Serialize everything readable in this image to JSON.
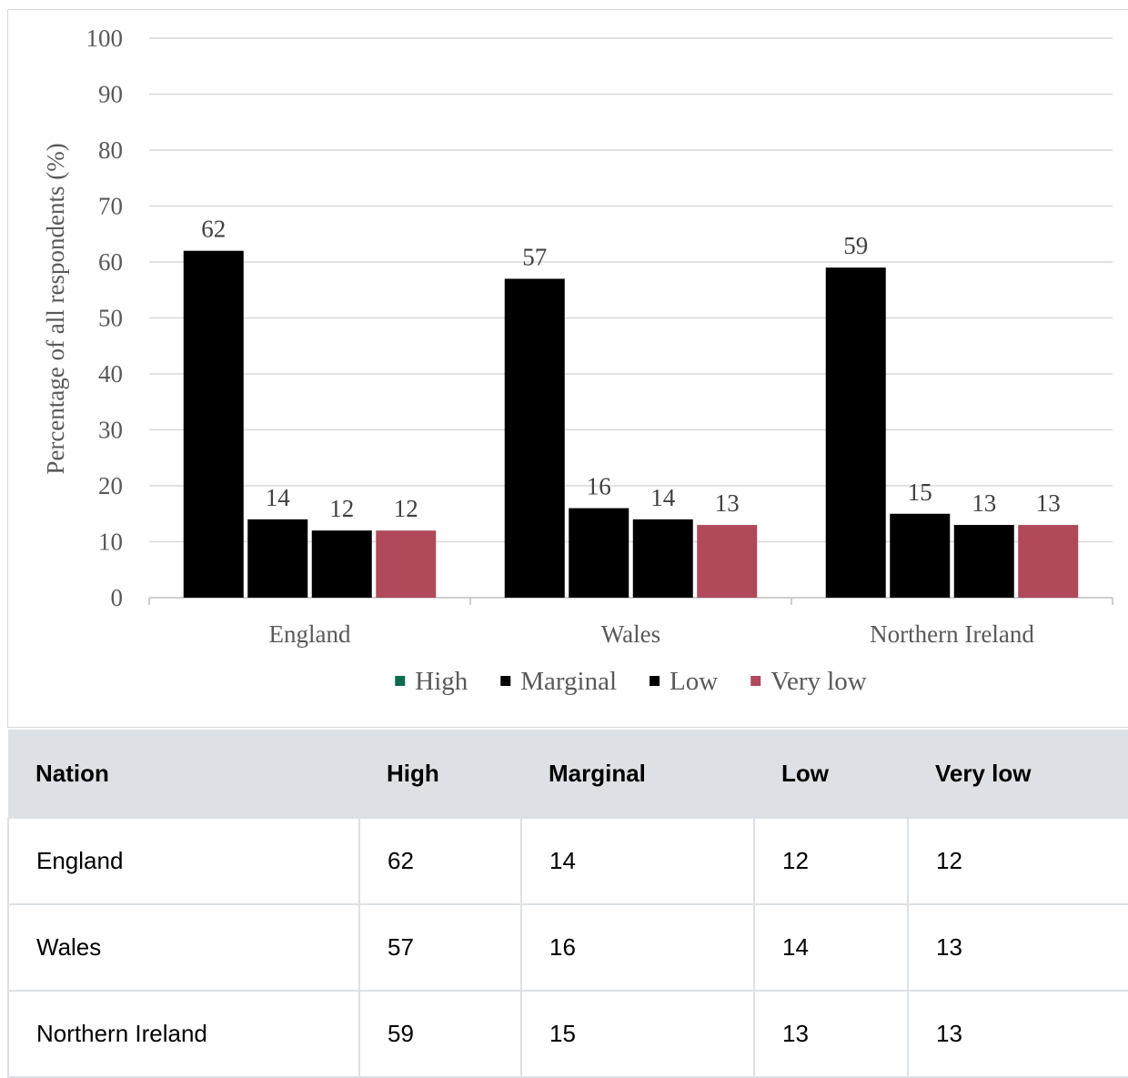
{
  "chart_data": {
    "type": "bar",
    "categories": [
      "England",
      "Wales",
      "Northern Ireland"
    ],
    "series": [
      {
        "name": "High",
        "values": [
          62,
          57,
          59
        ],
        "color": "#000000",
        "legend_color": "#0b6b4f"
      },
      {
        "name": "Marginal",
        "values": [
          14,
          16,
          15
        ],
        "color": "#000000",
        "legend_color": "#000000"
      },
      {
        "name": "Low",
        "values": [
          12,
          14,
          13
        ],
        "color": "#000000",
        "legend_color": "#000000"
      },
      {
        "name": "Very low",
        "values": [
          12,
          13,
          13
        ],
        "color": "#b0495a",
        "legend_color": "#b0495a"
      }
    ],
    "ylabel": "Percentage of all respondents (%)",
    "ylim": [
      0,
      100
    ],
    "yticks": [
      0,
      10,
      20,
      30,
      40,
      50,
      60,
      70,
      80,
      90,
      100
    ],
    "grid": true,
    "legend_position": "bottom"
  },
  "table": {
    "headers": [
      "Nation",
      "High",
      "Marginal",
      "Low",
      "Very low"
    ],
    "rows": [
      [
        "England",
        "62",
        "14",
        "12",
        "12"
      ],
      [
        "Wales",
        "57",
        "16",
        "14",
        "13"
      ],
      [
        "Northern Ireland",
        "59",
        "15",
        "13",
        "13"
      ]
    ]
  }
}
